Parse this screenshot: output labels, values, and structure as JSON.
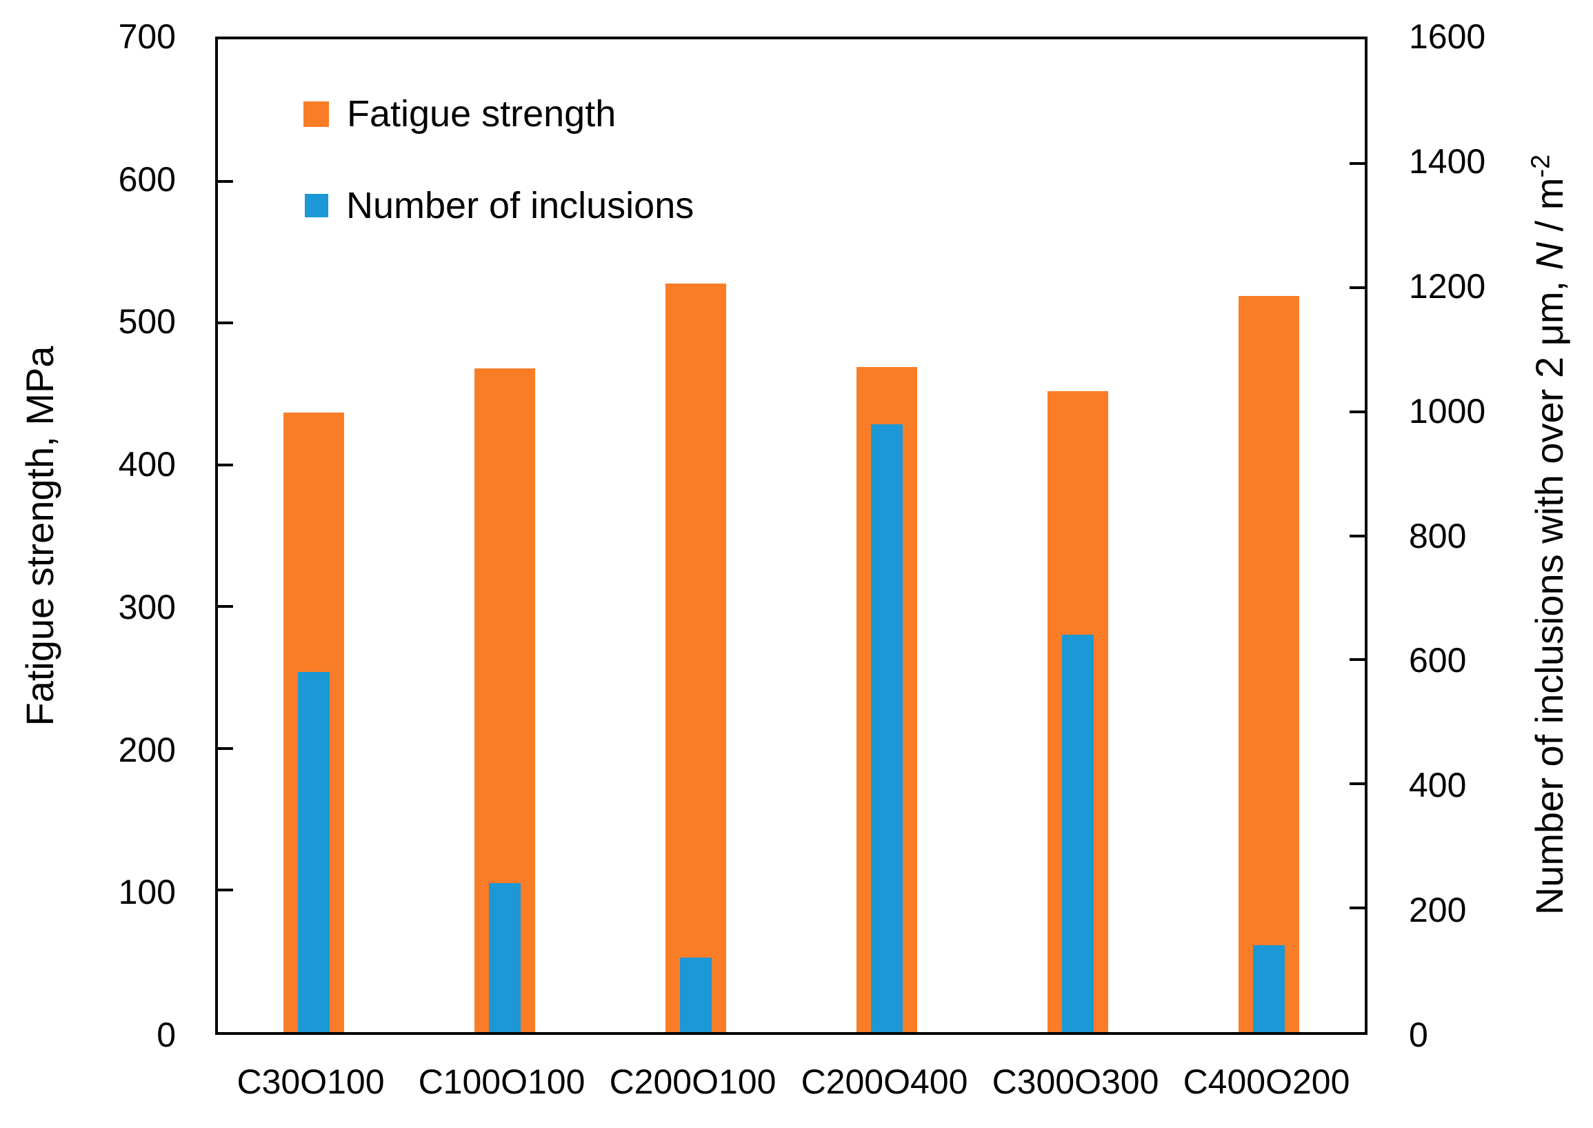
{
  "figure": {
    "background": "#ffffff"
  },
  "legend": {
    "items": [
      {
        "label": "Fatigue strength",
        "color": "#f97d27"
      },
      {
        "label": "Number of inclusions",
        "color": "#1b98d5"
      }
    ]
  },
  "left_axis": {
    "title": "Fatigue strength, MPa",
    "ticks": [
      0,
      100,
      200,
      300,
      400,
      500,
      600,
      700
    ],
    "min": 0,
    "max": 700
  },
  "right_axis": {
    "title_main": "Number of inclusions with over 2 μm, ",
    "title_var": "N",
    "title_unit": " / m",
    "title_sup": "-2",
    "ticks": [
      0,
      200,
      400,
      600,
      800,
      1000,
      1200,
      1400,
      1600
    ],
    "min": 0,
    "max": 1600
  },
  "chart_data": {
    "type": "bar",
    "categories": [
      "C30O100",
      "C100O100",
      "C200O100",
      "C200O400",
      "C300O300",
      "C400O200"
    ],
    "series": [
      {
        "name": "Fatigue strength",
        "axis": "left",
        "color": "#f97d27",
        "values": [
          437,
          468,
          528,
          469,
          452,
          519
        ]
      },
      {
        "name": "Number of inclusions",
        "axis": "right",
        "color": "#1b98d5",
        "values": [
          580,
          240,
          120,
          980,
          640,
          140
        ]
      }
    ],
    "title": "",
    "xlabel": "",
    "ylabel_left": "Fatigue strength, MPa",
    "ylabel_right": "Number of inclusions with over 2 μm, N / m⁻²",
    "ylim_left": [
      0,
      700
    ],
    "ylim_right": [
      0,
      1600
    ],
    "grid": false,
    "legend_position": "inside-top-left"
  }
}
